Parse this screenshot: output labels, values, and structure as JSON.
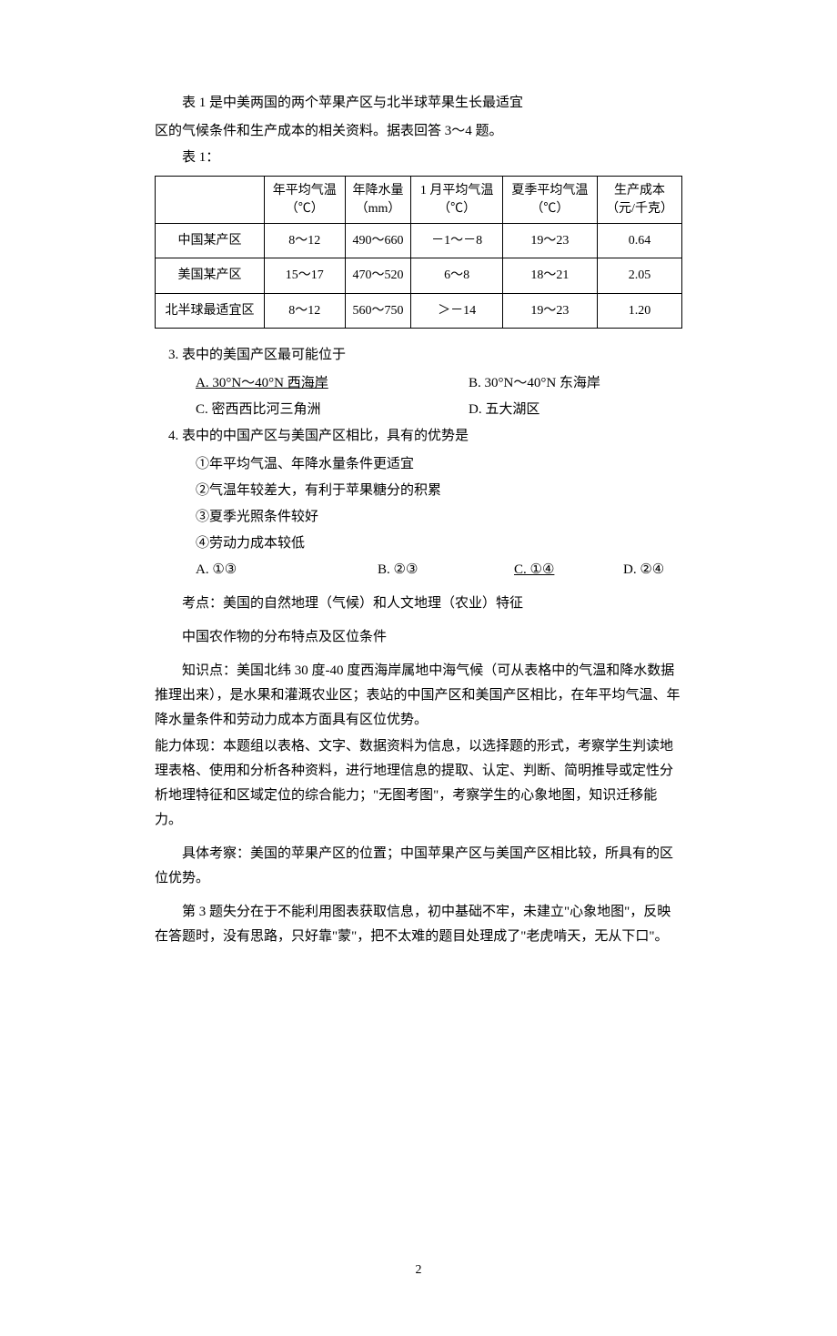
{
  "intro": {
    "line1": "表 1 是中美两国的两个苹果产区与北半球苹果生长最适宜",
    "line2": "区的气候条件和生产成本的相关资料。据表回答 3～4 题。"
  },
  "tableLabel": "表 1：",
  "table": {
    "headers": [
      "",
      "年平均气温\n（℃）",
      "年降水量\n（mm）",
      "1 月平均气温\n（℃）",
      "夏季平均气温\n（℃）",
      "生产成本\n（元/千克）"
    ],
    "rows": [
      [
        "中国某产区",
        "8～12",
        "490～660",
        "－1～－8",
        "19～23",
        "0.64"
      ],
      [
        "美国某产区",
        "15～17",
        "470～520",
        "6～8",
        "18～21",
        "2.05"
      ],
      [
        "北半球最适宜区",
        "8～12",
        "560～750",
        "＞－14",
        "19～23",
        "1.20"
      ]
    ]
  },
  "q3": {
    "stem": "3. 表中的美国产区最可能位于",
    "optA": "A. 30°N～40°N 西海岸",
    "optB": "B. 30°N～40°N 东海岸",
    "optC": "C. 密西西比河三角洲",
    "optD": "D. 五大湖区"
  },
  "q4": {
    "stem": "4. 表中的中国产区与美国产区相比，具有的优势是",
    "item1": "①年平均气温、年降水量条件更适宜",
    "item2": "②气温年较差大，有利于苹果糖分的积累",
    "item3": "③夏季光照条件较好",
    "item4": "④劳动力成本较低",
    "optA": "A. ①③",
    "optB": "B. ②③",
    "optC": "C. ①④",
    "optD": "D. ②④"
  },
  "analysis": {
    "p1": "考点：美国的自然地理（气候）和人文地理（农业）特征",
    "p2": "中国农作物的分布特点及区位条件",
    "p3": "知识点：美国北纬 30 度-40 度西海岸属地中海气候（可从表格中的气温和降水数据推理出来），是水果和灌溉农业区；表站的中国产区和美国产区相比，在年平均气温、年降水量条件和劳动力成本方面具有区位优势。",
    "p4": "能力体现：本题组以表格、文字、数据资料为信息，以选择题的形式，考察学生判读地理表格、使用和分析各种资料，进行地理信息的提取、认定、判断、简明推导或定性分析地理特征和区域定位的综合能力；\"无图考图\"，考察学生的心象地图，知识迁移能力。",
    "p5": "具体考察：美国的苹果产区的位置；中国苹果产区与美国产区相比较，所具有的区位优势。",
    "p6": "第 3 题失分在于不能利用图表获取信息，初中基础不牢，未建立\"心象地图\"，反映在答题时，没有思路，只好靠\"蒙\"，把不太难的题目处理成了\"老虎啃天，无从下口\"。"
  },
  "pageNumber": "2"
}
